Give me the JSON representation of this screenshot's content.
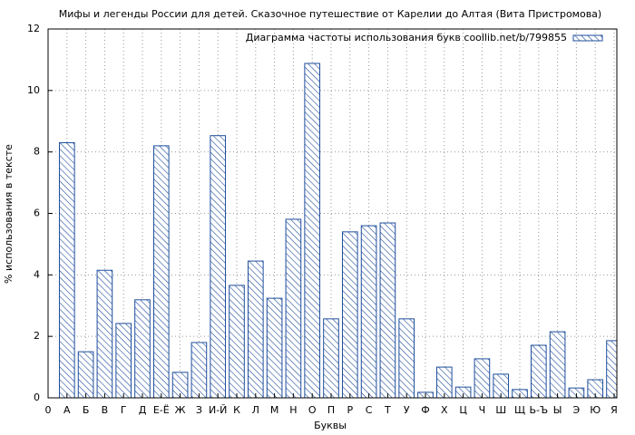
{
  "chart_data": {
    "type": "bar",
    "title": "Мифы и легенды России для детей. Сказочное путешествие от Карелии до Алтая (Вита Пристромова)",
    "x_label": "Буквы",
    "y_label": "% использования в тексте",
    "categories": [
      "0",
      "А",
      "Б",
      "В",
      "Г",
      "Д",
      "Е-Ё",
      "Ж",
      "З",
      "И-Й",
      "К",
      "Л",
      "М",
      "Н",
      "О",
      "П",
      "Р",
      "С",
      "Т",
      "У",
      "Ф",
      "Х",
      "Ц",
      "Ч",
      "Ш",
      "Щ",
      "Ь-Ъ",
      "Ы",
      "Э",
      "Ю",
      "Я"
    ],
    "series": [
      {
        "name": "Диаграмма частоты использования букв coollib.net/b/799855",
        "color": "#1f4e9c",
        "values": [
          null,
          8.3,
          1.5,
          4.15,
          2.42,
          3.19,
          8.2,
          0.83,
          1.8,
          8.53,
          3.66,
          4.45,
          3.24,
          5.81,
          10.88,
          2.57,
          5.4,
          5.6,
          5.69,
          2.57,
          0.18,
          1.0,
          0.35,
          1.27,
          0.77,
          0.27,
          1.71,
          2.15,
          0.32,
          0.59,
          1.86
        ]
      }
    ],
    "ylim": [
      0,
      12
    ],
    "yticks": [
      0,
      2,
      4,
      6,
      8,
      10,
      12
    ],
    "grid": true,
    "legend": "top-right"
  }
}
